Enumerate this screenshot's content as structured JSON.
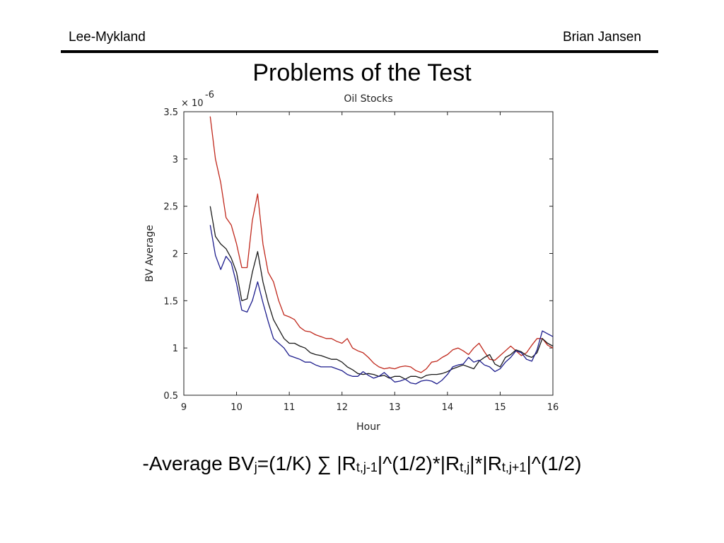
{
  "header": {
    "left": "Lee-Mykland",
    "right": "Brian Jansen"
  },
  "title": "Problems of the Test",
  "formula": {
    "p1": "-Average BV",
    "s1": "j",
    "p2": "=(1/K) ∑ |R",
    "s2": "t,j-1",
    "p3": "|^(1/2)*|R",
    "s3": "t,j",
    "p4": "|*|R",
    "s4": "t,j+1",
    "p5": "|^(1/2)"
  },
  "chart_data": {
    "type": "line",
    "title": "Oil Stocks",
    "xlabel": "Hour",
    "ylabel": "BV Average",
    "y_multiplier": "× 10",
    "y_multiplier_exp": "-6",
    "xlim": [
      9,
      16
    ],
    "ylim": [
      0.5,
      3.5
    ],
    "xticks": [
      9,
      10,
      11,
      12,
      13,
      14,
      15,
      16
    ],
    "yticks": [
      0.5,
      1,
      1.5,
      2,
      2.5,
      3,
      3.5
    ],
    "ytick_labels": [
      "0.5",
      "1",
      "1.5",
      "2",
      "2.5",
      "3",
      "3.5"
    ],
    "grid": false,
    "colors": {
      "red": "#c0281c",
      "black": "#1a1a1a",
      "blue": "#1c1c8c"
    },
    "series": [
      {
        "color": "red",
        "x": [
          9.5,
          9.6,
          9.7,
          9.8,
          9.9,
          10.0,
          10.1,
          10.2,
          10.3,
          10.4,
          10.5,
          10.6,
          10.7,
          10.8,
          10.9,
          11.0,
          11.1,
          11.2,
          11.3,
          11.4,
          11.5,
          11.6,
          11.7,
          11.8,
          11.9,
          12.0,
          12.1,
          12.2,
          12.3,
          12.4,
          12.5,
          12.6,
          12.7,
          12.8,
          12.9,
          13.0,
          13.1,
          13.2,
          13.3,
          13.4,
          13.5,
          13.6,
          13.7,
          13.8,
          13.9,
          14.0,
          14.1,
          14.2,
          14.3,
          14.4,
          14.5,
          14.6,
          14.7,
          14.8,
          14.9,
          15.0,
          15.1,
          15.2,
          15.3,
          15.4,
          15.5,
          15.6,
          15.7,
          15.8,
          15.9,
          16.0
        ],
        "y": [
          3.45,
          3.0,
          2.75,
          2.38,
          2.3,
          2.1,
          1.85,
          1.85,
          2.35,
          2.63,
          2.1,
          1.8,
          1.7,
          1.5,
          1.35,
          1.33,
          1.3,
          1.22,
          1.18,
          1.17,
          1.14,
          1.12,
          1.1,
          1.1,
          1.07,
          1.05,
          1.1,
          1.0,
          0.97,
          0.95,
          0.9,
          0.84,
          0.8,
          0.78,
          0.79,
          0.78,
          0.8,
          0.81,
          0.8,
          0.76,
          0.74,
          0.78,
          0.85,
          0.86,
          0.9,
          0.93,
          0.98,
          1.0,
          0.97,
          0.93,
          1.0,
          1.05,
          0.96,
          0.88,
          0.87,
          0.92,
          0.97,
          1.02,
          0.97,
          0.92,
          0.95,
          1.03,
          1.1,
          1.1,
          1.03,
          1.0
        ]
      },
      {
        "color": "black",
        "x": [
          9.5,
          9.6,
          9.7,
          9.8,
          9.9,
          10.0,
          10.1,
          10.2,
          10.3,
          10.4,
          10.5,
          10.6,
          10.7,
          10.8,
          10.9,
          11.0,
          11.1,
          11.2,
          11.3,
          11.4,
          11.5,
          11.6,
          11.7,
          11.8,
          11.9,
          12.0,
          12.1,
          12.2,
          12.3,
          12.4,
          12.5,
          12.6,
          12.7,
          12.8,
          12.9,
          13.0,
          13.1,
          13.2,
          13.3,
          13.4,
          13.5,
          13.6,
          13.7,
          13.8,
          13.9,
          14.0,
          14.1,
          14.2,
          14.3,
          14.4,
          14.5,
          14.6,
          14.7,
          14.8,
          14.9,
          15.0,
          15.1,
          15.2,
          15.3,
          15.4,
          15.5,
          15.6,
          15.7,
          15.8,
          15.9,
          16.0
        ],
        "y": [
          2.5,
          2.18,
          2.1,
          2.05,
          1.95,
          1.8,
          1.5,
          1.52,
          1.8,
          2.02,
          1.7,
          1.48,
          1.3,
          1.2,
          1.1,
          1.05,
          1.05,
          1.02,
          1.0,
          0.95,
          0.93,
          0.92,
          0.9,
          0.88,
          0.88,
          0.85,
          0.8,
          0.77,
          0.73,
          0.72,
          0.73,
          0.72,
          0.7,
          0.71,
          0.68,
          0.7,
          0.7,
          0.67,
          0.7,
          0.7,
          0.68,
          0.71,
          0.72,
          0.72,
          0.73,
          0.75,
          0.78,
          0.8,
          0.82,
          0.8,
          0.78,
          0.86,
          0.9,
          0.93,
          0.83,
          0.8,
          0.9,
          0.93,
          0.98,
          0.96,
          0.92,
          0.9,
          0.95,
          1.1,
          1.05,
          1.02
        ]
      },
      {
        "color": "blue",
        "x": [
          9.5,
          9.6,
          9.7,
          9.8,
          9.9,
          10.0,
          10.1,
          10.2,
          10.3,
          10.4,
          10.5,
          10.6,
          10.7,
          10.8,
          10.9,
          11.0,
          11.1,
          11.2,
          11.3,
          11.4,
          11.5,
          11.6,
          11.7,
          11.8,
          11.9,
          12.0,
          12.1,
          12.2,
          12.3,
          12.4,
          12.5,
          12.6,
          12.7,
          12.8,
          12.9,
          13.0,
          13.1,
          13.2,
          13.3,
          13.4,
          13.5,
          13.6,
          13.7,
          13.8,
          13.9,
          14.0,
          14.1,
          14.2,
          14.3,
          14.4,
          14.5,
          14.6,
          14.7,
          14.8,
          14.9,
          15.0,
          15.1,
          15.2,
          15.3,
          15.4,
          15.5,
          15.6,
          15.7,
          15.8,
          15.9,
          16.0
        ],
        "y": [
          2.3,
          1.98,
          1.83,
          1.97,
          1.9,
          1.68,
          1.4,
          1.38,
          1.5,
          1.7,
          1.48,
          1.28,
          1.1,
          1.05,
          1.0,
          0.92,
          0.9,
          0.88,
          0.85,
          0.85,
          0.82,
          0.8,
          0.8,
          0.8,
          0.78,
          0.76,
          0.72,
          0.7,
          0.7,
          0.75,
          0.71,
          0.68,
          0.7,
          0.74,
          0.69,
          0.64,
          0.65,
          0.67,
          0.63,
          0.62,
          0.65,
          0.66,
          0.65,
          0.62,
          0.66,
          0.72,
          0.8,
          0.82,
          0.83,
          0.9,
          0.85,
          0.87,
          0.82,
          0.8,
          0.75,
          0.78,
          0.85,
          0.9,
          0.97,
          0.95,
          0.88,
          0.86,
          0.98,
          1.18,
          1.15,
          1.12
        ]
      }
    ]
  }
}
